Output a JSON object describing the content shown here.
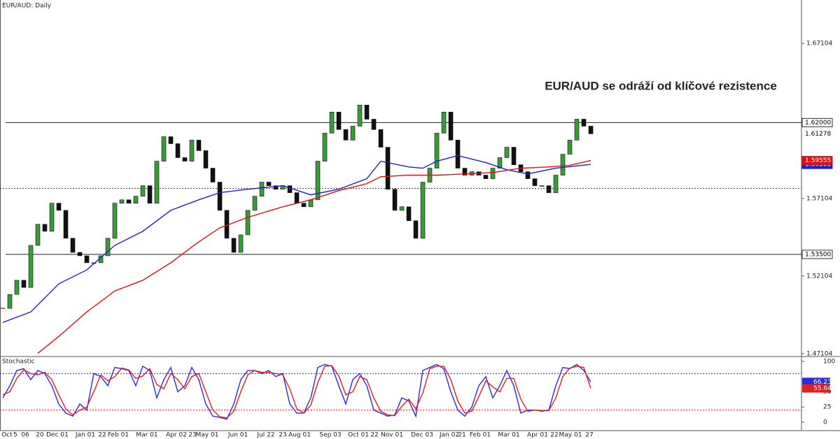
{
  "chart_data": [
    {
      "type": "candlestick",
      "title": "EUR/AUD: Daily",
      "annotation": "EUR/AUD se odráží od klíčové rezistence",
      "ylim": [
        1.47003,
        1.69906
      ],
      "yticks": [
        1.47104,
        1.52104,
        1.57104,
        1.67104
      ],
      "up_color": "#3a9a3a",
      "down_color": "#111111",
      "closes": [
        1.5002,
        1.5092,
        1.5183,
        1.5137,
        1.5408,
        1.5544,
        1.5499,
        1.568,
        1.5634,
        1.5454,
        1.5363,
        1.5341,
        1.5296,
        1.5296,
        1.5341,
        1.5454,
        1.568,
        1.5702,
        1.568,
        1.5725,
        1.5793,
        1.568,
        1.5951,
        1.6109,
        1.6064,
        1.5974,
        1.5951,
        1.6087,
        1.6019,
        1.5906,
        1.5816,
        1.5634,
        1.5454,
        1.5363,
        1.5476,
        1.5634,
        1.5725,
        1.5816,
        1.5793,
        1.577,
        1.5793,
        1.5748,
        1.568,
        1.5657,
        1.5702,
        1.5951,
        1.6132,
        1.6268,
        1.6155,
        1.6087,
        1.6177,
        1.6313,
        1.6222,
        1.6155,
        1.6041,
        1.577,
        1.5634,
        1.5657,
        1.5567,
        1.5454,
        1.5816,
        1.5906,
        1.6132,
        1.6268,
        1.6087,
        1.5906,
        1.5861,
        1.5883,
        1.5861,
        1.5838,
        1.5906,
        1.5974,
        1.6041,
        1.5928,
        1.5883,
        1.5838,
        1.5793,
        1.5793,
        1.5748,
        1.5861,
        1.5996,
        1.6087,
        1.6222,
        1.6177,
        1.61278
      ],
      "series": [
        {
          "color": "#1f1fcc",
          "x": [
            0,
            4,
            8,
            12,
            16,
            20,
            24,
            28,
            31,
            35,
            40,
            44,
            48,
            52,
            54,
            58,
            60,
            62,
            65,
            69,
            72,
            75,
            79,
            84
          ],
          "values": [
            1.4911,
            1.4979,
            1.516,
            1.525,
            1.5408,
            1.5499,
            1.5634,
            1.5702,
            1.5748,
            1.577,
            1.5793,
            1.5734,
            1.577,
            1.5838,
            1.5951,
            1.5914,
            1.5906,
            1.5951,
            1.5987,
            1.5942,
            1.5896,
            1.5869,
            1.5906,
            1.59303
          ]
        },
        {
          "color": "#e01010",
          "x": [
            5,
            8,
            12,
            16,
            20,
            24,
            28,
            31,
            35,
            40,
            44,
            48,
            52,
            54,
            58,
            62,
            66,
            70,
            74,
            78,
            81,
            84
          ],
          "values": [
            1.4712,
            1.4821,
            1.4979,
            1.5114,
            1.5183,
            1.5296,
            1.5431,
            1.5521,
            1.5589,
            1.5657,
            1.5702,
            1.5761,
            1.5806,
            1.5851,
            1.5861,
            1.5861,
            1.5869,
            1.5878,
            1.5906,
            1.5914,
            1.5924,
            1.59555
          ]
        }
      ],
      "levels": [
        {
          "value": 1.62,
          "label": "1.62000"
        },
        {
          "value": 1.535,
          "label": "1.53500"
        }
      ],
      "dotted_levels": [
        1.5775
      ]
    },
    {
      "type": "line",
      "title": "Stochastic",
      "ylim": [
        -13.8,
        105.7
      ],
      "yticks": [
        0,
        25,
        50,
        100
      ],
      "dotted_levels": [
        80,
        20
      ],
      "series": [
        {
          "color": "#2a2ae0",
          "values": [
            40,
            60,
            85,
            88,
            70,
            85,
            80,
            60,
            30,
            15,
            10,
            30,
            20,
            80,
            75,
            60,
            90,
            88,
            85,
            60,
            92,
            85,
            40,
            70,
            90,
            50,
            60,
            90,
            70,
            30,
            10,
            8,
            5,
            30,
            70,
            85,
            85,
            80,
            85,
            75,
            80,
            30,
            15,
            15,
            40,
            90,
            95,
            92,
            60,
            30,
            70,
            80,
            60,
            20,
            15,
            10,
            12,
            40,
            35,
            10,
            85,
            90,
            95,
            88,
            50,
            20,
            10,
            25,
            60,
            75,
            40,
            60,
            85,
            60,
            15,
            20,
            20,
            18,
            20,
            60,
            90,
            88,
            95,
            85,
            66.23
          ]
        },
        {
          "color": "#e02020",
          "values": [
            45,
            50,
            72,
            86,
            80,
            78,
            82,
            70,
            45,
            22,
            12,
            20,
            25,
            50,
            78,
            68,
            75,
            89,
            86,
            72,
            76,
            88,
            62,
            55,
            80,
            70,
            55,
            75,
            80,
            50,
            20,
            9,
            7,
            18,
            50,
            78,
            85,
            82,
            82,
            80,
            78,
            55,
            22,
            15,
            28,
            65,
            92,
            93,
            76,
            45,
            50,
            75,
            70,
            40,
            18,
            12,
            11,
            26,
            38,
            22,
            48,
            88,
            92,
            92,
            70,
            35,
            15,
            18,
            42,
            68,
            58,
            50,
            72,
            72,
            38,
            18,
            20,
            19,
            19,
            40,
            75,
            89,
            92,
            90,
            55.64
          ]
        }
      ],
      "x_axis_labels": [
        "Oct",
        "5",
        "06",
        "20",
        "Dec 01",
        "Jan 01",
        "22",
        "Feb 01",
        "Mar 01",
        "Apr 02",
        "23",
        "May 01",
        "Jun 01",
        "Jul 22",
        "23",
        "Aug 01",
        "Sep 03",
        "Oct 01",
        "22",
        "Nov 01",
        "Dec 03",
        "Jan 02",
        "21",
        "Feb 01",
        "Mar 01",
        "Apr 01",
        "22",
        "May 01",
        "27"
      ]
    }
  ]
}
